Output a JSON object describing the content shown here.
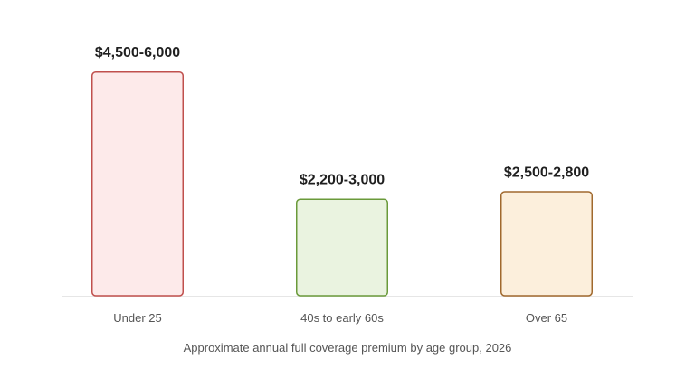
{
  "chart_data": {
    "type": "bar",
    "categories": [
      "Under 25",
      "40s to early 60s",
      "Over 65"
    ],
    "value_labels": [
      "$4,500-6,000",
      "$2,200-3,000",
      "$2,500-2,800"
    ],
    "values": [
      6000,
      2600,
      2800
    ],
    "ylim": [
      0,
      6000
    ],
    "grid": false,
    "legend": "none",
    "caption": "Approximate annual full coverage premium by age group, 2026",
    "colors": {
      "fills": [
        "#fdeaea",
        "#eaf3e0",
        "#fcefdc"
      ],
      "strokes": [
        "#c0504d",
        "#6a9a3a",
        "#a0692e"
      ],
      "baseline": "#e6e6e6"
    }
  }
}
